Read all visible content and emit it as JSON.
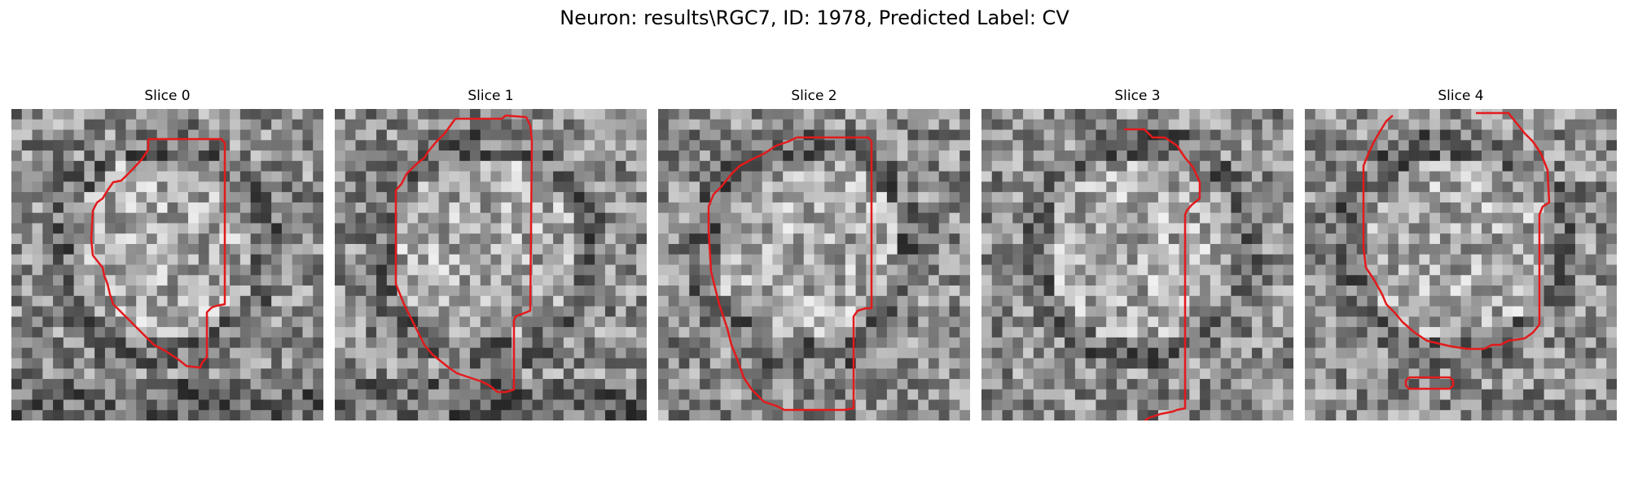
{
  "figure": {
    "title": "Neuron: results\\RGC7, ID: 1978, Predicted Label: CV"
  },
  "panels": [
    {
      "title": "Slice 0"
    },
    {
      "title": "Slice 1"
    },
    {
      "title": "Slice 2"
    },
    {
      "title": "Slice 3"
    },
    {
      "title": "Slice 4"
    }
  ],
  "image": {
    "grid_size": 30,
    "colormap": "gray",
    "contour_color": "#e31a1c"
  }
}
